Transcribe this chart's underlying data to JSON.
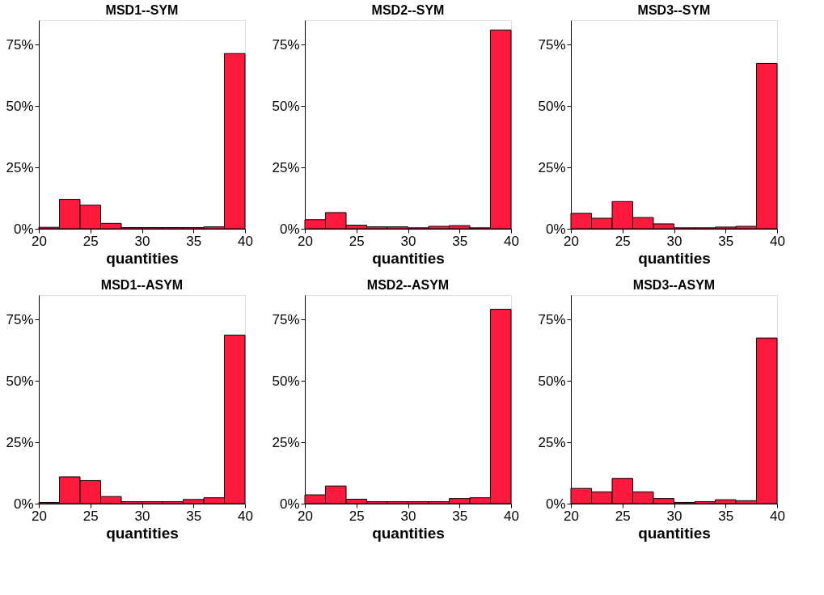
{
  "chart_data": [
    {
      "type": "histogram",
      "title": "MSD1--SYM",
      "xlabel": "quantities",
      "color": "#ff1a3d",
      "bins": [
        20,
        22,
        24,
        26,
        28,
        30,
        32,
        34,
        36,
        38,
        40
      ],
      "values": [
        0.6,
        12,
        9.6,
        2.2,
        0.5,
        0.5,
        0.5,
        0.5,
        0.8,
        71.4
      ],
      "xlim": [
        20,
        40
      ],
      "xticks": [
        20,
        25,
        30,
        35,
        40
      ],
      "ylim": [
        0,
        85
      ],
      "yticks": [
        {
          "value": 0,
          "label": "0%"
        },
        {
          "value": 25,
          "label": "25%"
        },
        {
          "value": 50,
          "label": "50%"
        },
        {
          "value": 75,
          "label": "75%"
        }
      ],
      "grid": false
    },
    {
      "type": "histogram",
      "title": "MSD2--SYM",
      "xlabel": "quantities",
      "color": "#ff1a3d",
      "bins": [
        20,
        22,
        24,
        26,
        28,
        30,
        32,
        34,
        36,
        38,
        40
      ],
      "values": [
        3.7,
        6.6,
        1.5,
        0.8,
        0.8,
        0.4,
        1.0,
        1.3,
        0.4,
        81
      ],
      "xlim": [
        20,
        40
      ],
      "xticks": [
        20,
        25,
        30,
        35,
        40
      ],
      "ylim": [
        0,
        85
      ],
      "yticks": [
        {
          "value": 0,
          "label": "0%"
        },
        {
          "value": 25,
          "label": "25%"
        },
        {
          "value": 50,
          "label": "50%"
        },
        {
          "value": 75,
          "label": "75%"
        }
      ],
      "grid": false
    },
    {
      "type": "histogram",
      "title": "MSD3--SYM",
      "xlabel": "quantities",
      "color": "#ff1a3d",
      "bins": [
        20,
        22,
        24,
        26,
        28,
        30,
        32,
        34,
        36,
        38,
        40
      ],
      "values": [
        6.3,
        4.3,
        11.1,
        4.6,
        2.0,
        0.4,
        0.4,
        0.7,
        1.0,
        67.4
      ],
      "xlim": [
        20,
        40
      ],
      "xticks": [
        20,
        25,
        30,
        35,
        40
      ],
      "ylim": [
        0,
        85
      ],
      "yticks": [
        {
          "value": 0,
          "label": "0%"
        },
        {
          "value": 25,
          "label": "25%"
        },
        {
          "value": 50,
          "label": "50%"
        },
        {
          "value": 75,
          "label": "75%"
        }
      ],
      "grid": false
    },
    {
      "type": "histogram",
      "title": "MSD1--ASYM",
      "xlabel": "quantities",
      "color": "#ff1a3d",
      "bins": [
        20,
        22,
        24,
        26,
        28,
        30,
        32,
        34,
        36,
        38,
        40
      ],
      "values": [
        0.5,
        10.9,
        9.4,
        2.9,
        0.8,
        0.8,
        0.8,
        1.7,
        2.4,
        68.7
      ],
      "xlim": [
        20,
        40
      ],
      "xticks": [
        20,
        25,
        30,
        35,
        40
      ],
      "ylim": [
        0,
        85
      ],
      "yticks": [
        {
          "value": 0,
          "label": "0%"
        },
        {
          "value": 25,
          "label": "25%"
        },
        {
          "value": 50,
          "label": "50%"
        },
        {
          "value": 75,
          "label": "75%"
        }
      ],
      "grid": false
    },
    {
      "type": "histogram",
      "title": "MSD2--ASYM",
      "xlabel": "quantities",
      "color": "#ff1a3d",
      "bins": [
        20,
        22,
        24,
        26,
        28,
        30,
        32,
        34,
        36,
        38,
        40
      ],
      "values": [
        3.6,
        7.2,
        1.8,
        0.8,
        0.8,
        0.8,
        0.8,
        2.1,
        2.4,
        79.2
      ],
      "xlim": [
        20,
        40
      ],
      "xticks": [
        20,
        25,
        30,
        35,
        40
      ],
      "ylim": [
        0,
        85
      ],
      "yticks": [
        {
          "value": 0,
          "label": "0%"
        },
        {
          "value": 25,
          "label": "25%"
        },
        {
          "value": 50,
          "label": "50%"
        },
        {
          "value": 75,
          "label": "75%"
        }
      ],
      "grid": false
    },
    {
      "type": "histogram",
      "title": "MSD3--ASYM",
      "xlabel": "quantities",
      "color": "#ff1a3d",
      "bins": [
        20,
        22,
        24,
        26,
        28,
        30,
        32,
        34,
        36,
        38,
        40
      ],
      "values": [
        6.2,
        4.8,
        10.3,
        4.8,
        2.1,
        0.5,
        0.8,
        1.6,
        1.2,
        67.5
      ],
      "xlim": [
        20,
        40
      ],
      "xticks": [
        20,
        25,
        30,
        35,
        40
      ],
      "ylim": [
        0,
        85
      ],
      "yticks": [
        {
          "value": 0,
          "label": "0%"
        },
        {
          "value": 25,
          "label": "25%"
        },
        {
          "value": 50,
          "label": "50%"
        },
        {
          "value": 75,
          "label": "75%"
        }
      ],
      "grid": false
    }
  ]
}
